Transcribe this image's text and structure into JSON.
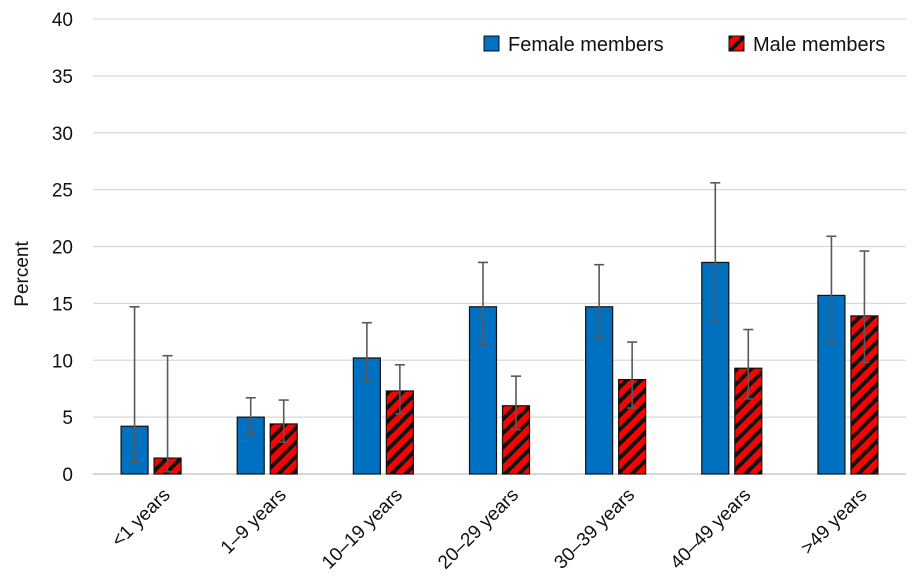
{
  "chart_data": {
    "type": "bar",
    "title": "",
    "xlabel": "",
    "ylabel": "Percent",
    "ylim": [
      0,
      40
    ],
    "yticks": [
      0,
      5,
      10,
      15,
      20,
      25,
      30,
      35,
      40
    ],
    "grid": "horizontal",
    "legend_position": "top-right",
    "categories": [
      "<1 years",
      "1–9 years",
      "10–19 years",
      "20–29 years",
      "30–39 years",
      "40–49 years",
      ">49 years"
    ],
    "series": [
      {
        "name": "Female members",
        "color": "#0070c0",
        "pattern": "solid",
        "values": [
          4.2,
          5.0,
          10.2,
          14.7,
          14.7,
          18.6,
          15.7
        ],
        "error_low": [
          1.0,
          3.5,
          8.2,
          11.4,
          11.9,
          13.4,
          11.6
        ],
        "error_high": [
          14.7,
          6.7,
          13.3,
          18.6,
          18.4,
          25.6,
          20.9
        ]
      },
      {
        "name": "Male members",
        "color": "#ff0000",
        "pattern": "diagonal-hatch",
        "values": [
          1.4,
          4.4,
          7.3,
          6.0,
          8.3,
          9.3,
          13.9
        ],
        "error_low": [
          0.2,
          2.8,
          5.3,
          3.9,
          5.8,
          6.6,
          9.8
        ],
        "error_high": [
          10.4,
          6.5,
          9.6,
          8.6,
          11.6,
          12.7,
          19.6
        ]
      }
    ]
  }
}
